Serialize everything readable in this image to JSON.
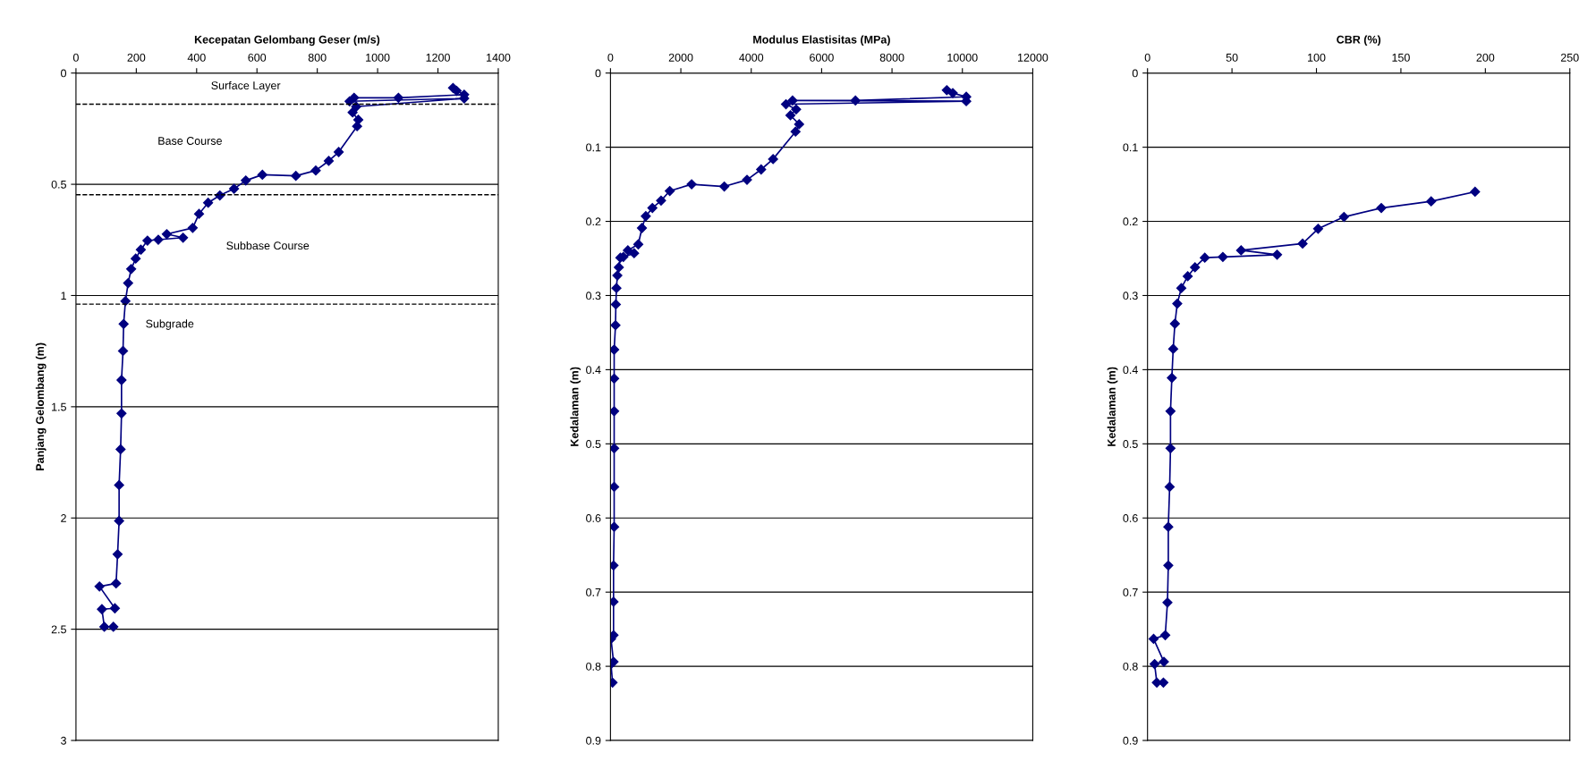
{
  "chart_data": [
    {
      "type": "line",
      "xlabel": "Kecepatan Gelombang Geser (m/s)",
      "ylabel": "Panjang Gelombang (m)",
      "xlim": [
        0,
        1400
      ],
      "xticks": [
        0,
        200,
        400,
        600,
        800,
        1000,
        1200,
        1400
      ],
      "ylim": [
        3,
        0
      ],
      "yticks": [
        0,
        0.5,
        1,
        1.5,
        2,
        2.5,
        3
      ],
      "grid": "y",
      "marker": "diamond",
      "line_style": "solid",
      "series": [
        {
          "color": "#000080",
          "x": [
            1250,
            1262,
            1287,
            1069,
            922,
            907,
            1287,
            929,
            917,
            936,
            932,
            871,
            838,
            795,
            729,
            618,
            563,
            524,
            477,
            438,
            408,
            387,
            301,
            355,
            273,
            237,
            215,
            198,
            183,
            173,
            164,
            158,
            156,
            151,
            151,
            148,
            143,
            143,
            138,
            133,
            78,
            129,
            86,
            94,
            124
          ],
          "values": [
            0.067,
            0.08,
            0.097,
            0.111,
            0.111,
            0.127,
            0.114,
            0.151,
            0.177,
            0.21,
            0.239,
            0.355,
            0.395,
            0.438,
            0.462,
            0.457,
            0.483,
            0.52,
            0.55,
            0.583,
            0.633,
            0.696,
            0.724,
            0.74,
            0.749,
            0.753,
            0.794,
            0.834,
            0.881,
            0.944,
            1.025,
            1.128,
            1.249,
            1.38,
            1.53,
            1.691,
            1.852,
            2.013,
            2.163,
            2.294,
            2.308,
            2.406,
            2.41,
            2.489,
            2.489
          ]
        }
      ],
      "ref_lines": [
        {
          "axis": "y",
          "value": 0.14,
          "line_style": "dashed",
          "color": "#000000"
        },
        {
          "axis": "y",
          "value": 0.547,
          "line_style": "dashed",
          "color": "#000000"
        },
        {
          "axis": "y",
          "value": 1.039,
          "line_style": "dashed",
          "color": "#000000"
        }
      ],
      "annotations": [
        "Surface Layer",
        "Base Course",
        "Subbase Course",
        "Subgrade"
      ]
    },
    {
      "type": "line",
      "xlabel": "Modulus Elastisitas (MPa)",
      "ylabel": "Kedalaman (m)",
      "xlim": [
        0,
        12000
      ],
      "xticks": [
        0,
        2000,
        4000,
        6000,
        8000,
        10000,
        12000
      ],
      "ylim": [
        0.9,
        0
      ],
      "yticks": [
        0,
        0.1,
        0.2,
        0.3,
        0.4,
        0.5,
        0.6,
        0.7,
        0.8,
        0.9
      ],
      "grid": "y",
      "marker": "diamond",
      "line_style": "solid",
      "series": [
        {
          "color": "#000080",
          "x": [
            9557,
            9727,
            10110,
            6961,
            5174,
            10110,
            4987,
            5276,
            5114,
            5361,
            5259,
            4621,
            4281,
            3880,
            3234,
            2306,
            1685,
            1438,
            1191,
            1004,
            894,
            791,
            494,
            672,
            366,
            281,
            238,
            196,
            170,
            153,
            143,
            105,
            105,
            105,
            105,
            105,
            105,
            87,
            87,
            87,
            15,
            87,
            15,
            59
          ],
          "values": [
            0.023,
            0.027,
            0.032,
            0.037,
            0.037,
            0.038,
            0.042,
            0.049,
            0.057,
            0.069,
            0.079,
            0.116,
            0.13,
            0.144,
            0.153,
            0.15,
            0.159,
            0.172,
            0.182,
            0.193,
            0.209,
            0.231,
            0.239,
            0.243,
            0.248,
            0.249,
            0.262,
            0.273,
            0.29,
            0.312,
            0.34,
            0.373,
            0.412,
            0.456,
            0.506,
            0.558,
            0.612,
            0.664,
            0.713,
            0.758,
            0.763,
            0.794,
            0.797,
            0.822
          ]
        }
      ]
    },
    {
      "type": "line",
      "xlabel": "CBR (%)",
      "ylabel": "Kedalaman (m)",
      "xlim": [
        0,
        250
      ],
      "xticks": [
        0,
        50,
        100,
        150,
        200,
        250
      ],
      "ylim": [
        0.9,
        0
      ],
      "yticks": [
        0,
        0.1,
        0.2,
        0.3,
        0.4,
        0.5,
        0.6,
        0.7,
        0.8,
        0.9
      ],
      "grid": "y",
      "marker": "diamond",
      "line_style": "solid",
      "series": [
        {
          "color": "#000080",
          "x": [
            193.9,
            167.9,
            138.4,
            116.3,
            101.0,
            91.8,
            55.4,
            76.7,
            44.6,
            33.9,
            28.1,
            23.8,
            20.0,
            17.6,
            16.2,
            15.2,
            14.4,
            13.6,
            13.6,
            13.1,
            12.3,
            12.3,
            11.8,
            10.5,
            3.6,
            9.7,
            4.2,
            5.5,
            9.4
          ],
          "values": [
            0.16,
            0.173,
            0.182,
            0.194,
            0.21,
            0.23,
            0.239,
            0.245,
            0.248,
            0.249,
            0.262,
            0.274,
            0.29,
            0.311,
            0.338,
            0.372,
            0.411,
            0.456,
            0.506,
            0.558,
            0.612,
            0.664,
            0.714,
            0.758,
            0.763,
            0.794,
            0.797,
            0.822,
            0.822
          ]
        }
      ]
    }
  ]
}
